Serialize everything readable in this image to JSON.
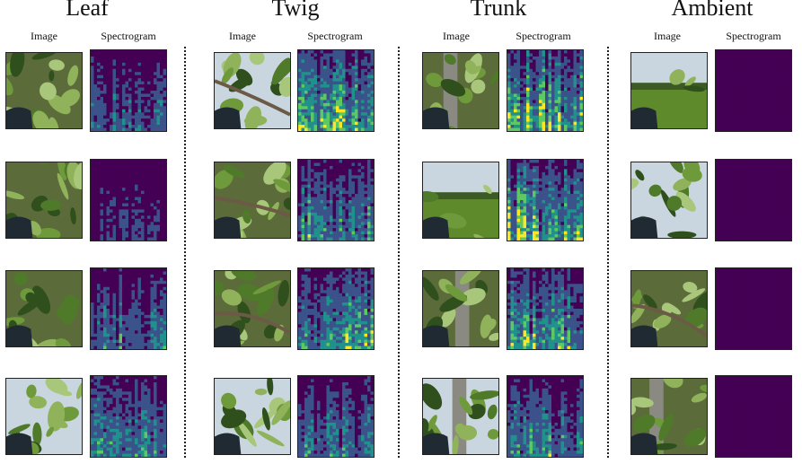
{
  "groups": [
    {
      "title": "Leaf",
      "image_label": "Image",
      "spec_label": "Spectrogram"
    },
    {
      "title": "Twig",
      "image_label": "Image",
      "spec_label": "Spectrogram"
    },
    {
      "title": "Trunk",
      "image_label": "Image",
      "spec_label": "Spectrogram"
    },
    {
      "title": "Ambient",
      "image_label": "Image",
      "spec_label": "Spectrogram"
    }
  ],
  "colors": {
    "spectrogram_low": "#440154",
    "spectrogram_mid_low": "#3b528b",
    "spectrogram_mid": "#21918c",
    "spectrogram_mid_high": "#5ec962",
    "spectrogram_high": "#fde725",
    "divider": "#222222"
  },
  "photo_scenes": [
    [
      "leaves-closeup",
      "leaves-closeup",
      "leaves-and-ground",
      "orchard-trees"
    ],
    [
      "orchard-branch",
      "twig-closeup",
      "twig-with-leaves",
      "canopy-leaves"
    ],
    [
      "trunk-with-leaves",
      "orchard-field",
      "trunk-closeup",
      "trunk-in-orchard"
    ],
    [
      "open-field",
      "leaves-and-sky",
      "leaves-and-branch",
      "trunk-and-leaves"
    ]
  ],
  "spectrogram_intensity": [
    [
      0.45,
      0.3,
      0.55,
      0.65
    ],
    [
      0.8,
      0.7,
      0.75,
      0.55
    ],
    [
      0.9,
      0.85,
      0.8,
      0.6
    ],
    [
      0.1,
      0.05,
      0.1,
      0.15
    ]
  ]
}
